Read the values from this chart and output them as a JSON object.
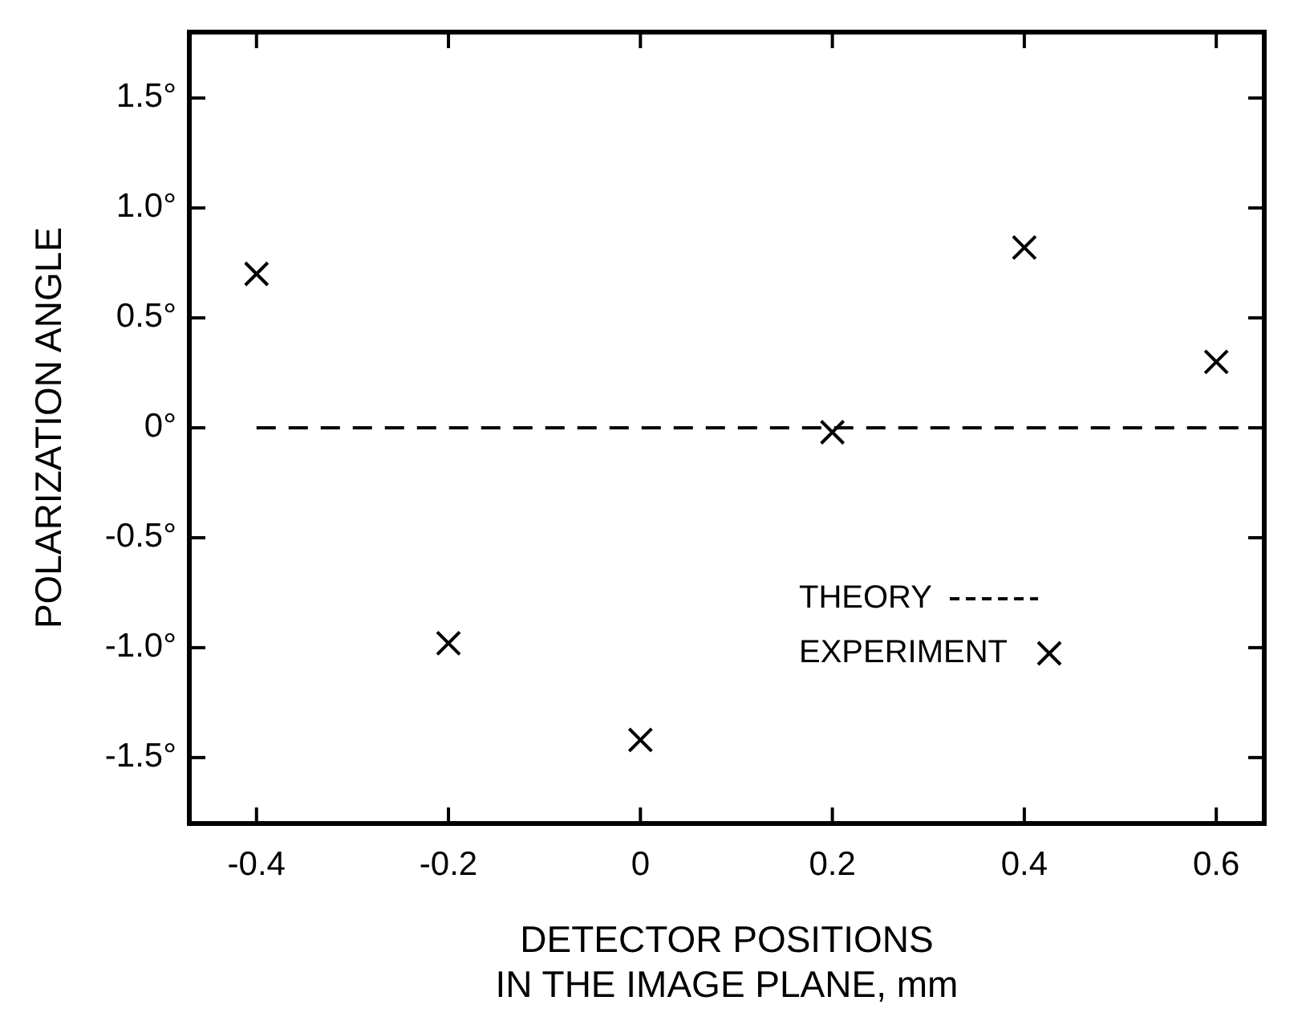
{
  "chart_data": {
    "type": "scatter",
    "xlabel": "DETECTOR POSITIONS\nIN THE IMAGE PLANE, mm",
    "ylabel": "POLARIZATION ANGLE",
    "xlim": [
      -0.47,
      0.65
    ],
    "xticks": [
      -0.4,
      -0.2,
      0,
      0.2,
      0.4,
      0.6
    ],
    "ylim": [
      -1.8,
      1.8
    ],
    "yticks": [
      {
        "value": -1.5,
        "label": "-1.5°"
      },
      {
        "value": -1,
        "label": "-1.0°"
      },
      {
        "value": -0.5,
        "label": "-0.5°"
      },
      {
        "value": 0,
        "label": "0°"
      },
      {
        "value": 0.5,
        "label": "0.5°"
      },
      {
        "value": 1,
        "label": "1.0°"
      },
      {
        "value": 1.5,
        "label": "1.5°"
      }
    ],
    "grid": false,
    "legend": "bottom right",
    "series": [
      {
        "name": "THEORY",
        "type": "line",
        "color": "#000000",
        "line_style": "dashed",
        "marker": "none",
        "x": [
          -0.4,
          0.65
        ],
        "values": [
          0,
          0
        ]
      },
      {
        "name": "EXPERIMENT",
        "color": "#000000",
        "marker": "cross",
        "x": [
          -0.4,
          -0.2,
          0,
          0.2,
          0.4,
          0.6
        ],
        "values": [
          0.7,
          -0.98,
          -1.42,
          -0.02,
          0.82,
          0.3
        ]
      }
    ]
  }
}
